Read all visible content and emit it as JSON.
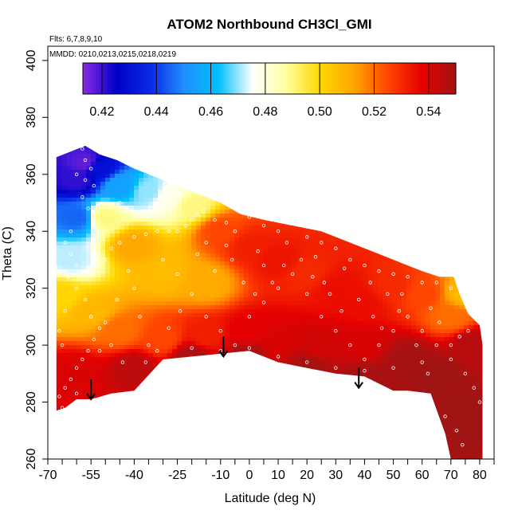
{
  "chart_data": {
    "type": "heatmap",
    "title": "ATOM2 Northbound CH3Cl_GMI",
    "annotations": [
      "Flts: 6,7,8,9,10",
      "MMDD: 0210,0213,0215,0218,0219"
    ],
    "xlabel": "Latitude (deg N)",
    "ylabel": "Theta (C)",
    "xlim": [
      -70,
      85
    ],
    "ylim": [
      260,
      405
    ],
    "x_ticks": [
      -70,
      -55,
      -40,
      -25,
      -10,
      0,
      10,
      20,
      30,
      40,
      50,
      60,
      70,
      80
    ],
    "x_tick_labels": [
      "-70",
      "-55",
      "-40",
      "-25",
      "-10",
      "0",
      "10",
      "20",
      "30",
      "40",
      "50",
      "60",
      "70",
      "80"
    ],
    "x_minor_ticks": [
      -65,
      -60,
      -50,
      -45,
      -35,
      -30,
      -20,
      -15,
      -5,
      5,
      15,
      25,
      35,
      45,
      55,
      65,
      75,
      85
    ],
    "y_ticks": [
      260,
      280,
      300,
      320,
      340,
      360,
      380,
      400
    ],
    "y_tick_labels": [
      "260",
      "280",
      "300",
      "320",
      "340",
      "360",
      "380",
      "400"
    ],
    "colorbar": {
      "range": [
        0.413,
        0.55
      ],
      "ticks": [
        0.42,
        0.44,
        0.46,
        0.48,
        0.5,
        0.52,
        0.54
      ],
      "tick_labels": [
        "0.42",
        "0.44",
        "0.46",
        "0.48",
        "0.50",
        "0.52",
        "0.54"
      ],
      "colors": [
        "#8a2be2",
        "#0000c8",
        "#0a2ae6",
        "#1e90ff",
        "#00bfff",
        "#ffffff",
        "#ffffa0",
        "#ffd700",
        "#ffa500",
        "#ff4500",
        "#e60000",
        "#a01414"
      ]
    },
    "domain_top": [
      [
        -67,
        366
      ],
      [
        -57,
        370
      ],
      [
        -52,
        367
      ],
      [
        -46,
        365
      ],
      [
        -40,
        362
      ],
      [
        -30,
        358
      ],
      [
        -25,
        356
      ],
      [
        -20,
        354
      ],
      [
        -10,
        350
      ],
      [
        -3,
        346
      ],
      [
        5,
        344
      ],
      [
        15,
        342
      ],
      [
        25,
        340
      ],
      [
        30,
        338
      ],
      [
        40,
        334
      ],
      [
        45,
        332
      ],
      [
        50,
        330
      ],
      [
        55,
        328
      ],
      [
        60,
        326
      ],
      [
        66,
        324
      ],
      [
        71,
        324
      ],
      [
        73,
        318
      ],
      [
        76,
        311
      ],
      [
        80,
        307
      ],
      [
        81,
        300
      ],
      [
        81,
        260
      ]
    ],
    "domain_bottom": [
      [
        80,
        260
      ],
      [
        70,
        260
      ],
      [
        68,
        269
      ],
      [
        63,
        283
      ],
      [
        55,
        284
      ],
      [
        50,
        284
      ],
      [
        40,
        289
      ],
      [
        30,
        290
      ],
      [
        20,
        292
      ],
      [
        10,
        294
      ],
      [
        0,
        298
      ],
      [
        -10,
        297
      ],
      [
        -20,
        296
      ],
      [
        -30,
        295
      ],
      [
        -40,
        284
      ],
      [
        -48,
        283
      ],
      [
        -55,
        281
      ],
      [
        -60,
        281
      ],
      [
        -64,
        278
      ],
      [
        -67,
        277
      ]
    ],
    "field_points": [
      {
        "lat": -60,
        "theta": 358,
        "value": 0.421
      },
      {
        "lat": -57,
        "theta": 364,
        "value": 0.417
      },
      {
        "lat": -52,
        "theta": 362,
        "value": 0.43
      },
      {
        "lat": -60,
        "theta": 345,
        "value": 0.445
      },
      {
        "lat": -62,
        "theta": 330,
        "value": 0.472
      },
      {
        "lat": -45,
        "theta": 356,
        "value": 0.455
      },
      {
        "lat": -35,
        "theta": 354,
        "value": 0.47
      },
      {
        "lat": -28,
        "theta": 352,
        "value": 0.478
      },
      {
        "lat": -20,
        "theta": 349,
        "value": 0.49
      },
      {
        "lat": -50,
        "theta": 345,
        "value": 0.49
      },
      {
        "lat": -40,
        "theta": 335,
        "value": 0.512
      },
      {
        "lat": -30,
        "theta": 325,
        "value": 0.507
      },
      {
        "lat": -15,
        "theta": 322,
        "value": 0.511
      },
      {
        "lat": -10,
        "theta": 340,
        "value": 0.525
      },
      {
        "lat": 0,
        "theta": 335,
        "value": 0.532
      },
      {
        "lat": 10,
        "theta": 330,
        "value": 0.534
      },
      {
        "lat": 20,
        "theta": 325,
        "value": 0.53
      },
      {
        "lat": 30,
        "theta": 320,
        "value": 0.535
      },
      {
        "lat": 40,
        "theta": 315,
        "value": 0.535
      },
      {
        "lat": 50,
        "theta": 320,
        "value": 0.53
      },
      {
        "lat": 60,
        "theta": 318,
        "value": 0.525
      },
      {
        "lat": 70,
        "theta": 310,
        "value": 0.52
      },
      {
        "lat": 75,
        "theta": 318,
        "value": 0.508
      },
      {
        "lat": -65,
        "theta": 318,
        "value": 0.5
      },
      {
        "lat": -55,
        "theta": 312,
        "value": 0.508
      },
      {
        "lat": -45,
        "theta": 305,
        "value": 0.52
      },
      {
        "lat": -30,
        "theta": 302,
        "value": 0.525
      },
      {
        "lat": -15,
        "theta": 303,
        "value": 0.532
      },
      {
        "lat": 0,
        "theta": 304,
        "value": 0.538
      },
      {
        "lat": 10,
        "theta": 300,
        "value": 0.54
      },
      {
        "lat": 25,
        "theta": 300,
        "value": 0.541
      },
      {
        "lat": 40,
        "theta": 300,
        "value": 0.54
      },
      {
        "lat": -60,
        "theta": 290,
        "value": 0.54
      },
      {
        "lat": -40,
        "theta": 292,
        "value": 0.545
      },
      {
        "lat": -20,
        "theta": 296,
        "value": 0.548
      },
      {
        "lat": 0,
        "theta": 297,
        "value": 0.548
      },
      {
        "lat": 20,
        "theta": 292,
        "value": 0.549
      },
      {
        "lat": 40,
        "theta": 288,
        "value": 0.549
      },
      {
        "lat": 55,
        "theta": 295,
        "value": 0.549
      },
      {
        "lat": 65,
        "theta": 290,
        "value": 0.55
      },
      {
        "lat": 75,
        "theta": 275,
        "value": 0.55
      },
      {
        "lat": 78,
        "theta": 300,
        "value": 0.546
      }
    ],
    "flight_track_points": [
      [
        -58,
        369
      ],
      [
        -57,
        365
      ],
      [
        -55,
        362
      ],
      [
        -57,
        358
      ],
      [
        -54,
        356
      ],
      [
        -60,
        360
      ],
      [
        -58,
        352
      ],
      [
        -56,
        348
      ],
      [
        -62,
        340
      ],
      [
        -64,
        336
      ],
      [
        -62,
        332
      ],
      [
        -60,
        328
      ],
      [
        -63,
        324
      ],
      [
        -60,
        320
      ],
      [
        -57,
        316
      ],
      [
        -55,
        310
      ],
      [
        -52,
        306
      ],
      [
        -54,
        302
      ],
      [
        -56,
        298
      ],
      [
        -58,
        295
      ],
      [
        -60,
        292
      ],
      [
        -62,
        288
      ],
      [
        -64,
        285
      ],
      [
        -66,
        282
      ],
      [
        -65,
        278
      ],
      [
        -60,
        283
      ],
      [
        -52,
        298
      ],
      [
        -50,
        330
      ],
      [
        -48,
        334
      ],
      [
        -45,
        336
      ],
      [
        -40,
        338
      ],
      [
        -36,
        339
      ],
      [
        -32,
        340
      ],
      [
        -28,
        340
      ],
      [
        -25,
        340
      ],
      [
        -22,
        342
      ],
      [
        -20,
        344
      ],
      [
        -18,
        346
      ],
      [
        -16,
        347
      ],
      [
        -12,
        344
      ],
      [
        -8,
        343
      ],
      [
        -5,
        340
      ],
      [
        0,
        345
      ],
      [
        5,
        342
      ],
      [
        10,
        340
      ],
      [
        15,
        344
      ],
      [
        20,
        338
      ],
      [
        25,
        336
      ],
      [
        30,
        334
      ],
      [
        35,
        330
      ],
      [
        40,
        328
      ],
      [
        45,
        326
      ],
      [
        50,
        325
      ],
      [
        55,
        324
      ],
      [
        60,
        322
      ],
      [
        65,
        322
      ],
      [
        70,
        320
      ],
      [
        -40,
        320
      ],
      [
        -38,
        310
      ],
      [
        -35,
        300
      ],
      [
        -30,
        330
      ],
      [
        -25,
        325
      ],
      [
        -20,
        318
      ],
      [
        -15,
        310
      ],
      [
        -10,
        305
      ],
      [
        -5,
        300
      ],
      [
        0,
        310
      ],
      [
        5,
        315
      ],
      [
        10,
        320
      ],
      [
        15,
        325
      ],
      [
        20,
        318
      ],
      [
        25,
        310
      ],
      [
        30,
        305
      ],
      [
        35,
        300
      ],
      [
        40,
        295
      ],
      [
        45,
        300
      ],
      [
        50,
        305
      ],
      [
        55,
        310
      ],
      [
        60,
        305
      ],
      [
        65,
        300
      ],
      [
        70,
        295
      ],
      [
        75,
        290
      ],
      [
        78,
        285
      ],
      [
        80,
        280
      ],
      [
        72,
        270
      ],
      [
        74,
        265
      ],
      [
        68,
        275
      ],
      [
        62,
        290
      ],
      [
        58,
        300
      ],
      [
        52,
        312
      ],
      [
        48,
        318
      ],
      [
        42,
        322
      ],
      [
        38,
        316
      ],
      [
        32,
        312
      ],
      [
        28,
        318
      ],
      [
        22,
        324
      ],
      [
        18,
        330
      ],
      [
        12,
        328
      ],
      [
        8,
        322
      ],
      [
        2,
        318
      ],
      [
        -2,
        322
      ],
      [
        -6,
        330
      ],
      [
        -12,
        326
      ],
      [
        -18,
        332
      ],
      [
        -24,
        312
      ],
      [
        -28,
        306
      ],
      [
        -32,
        298
      ],
      [
        -36,
        294
      ],
      [
        -44,
        294
      ],
      [
        -48,
        300
      ],
      [
        -50,
        308
      ],
      [
        -46,
        316
      ],
      [
        -42,
        326
      ],
      [
        -10,
        298
      ],
      [
        -20,
        299
      ],
      [
        0,
        299
      ],
      [
        10,
        296
      ],
      [
        20,
        294
      ],
      [
        30,
        292
      ],
      [
        40,
        291
      ],
      [
        50,
        292
      ],
      [
        60,
        294
      ],
      [
        70,
        300
      ],
      [
        76,
        305
      ],
      [
        -8,
        335
      ],
      [
        3,
        333
      ],
      [
        13,
        336
      ],
      [
        23,
        331
      ],
      [
        33,
        327
      ],
      [
        43,
        310
      ],
      [
        53,
        318
      ],
      [
        63,
        313
      ],
      [
        73,
        303
      ],
      [
        -65,
        300
      ],
      [
        -66,
        305
      ],
      [
        -64,
        312
      ],
      [
        -55,
        325
      ],
      [
        -52,
        340
      ],
      [
        -45,
        350
      ],
      [
        -35,
        345
      ],
      [
        -15,
        336
      ],
      [
        5,
        328
      ],
      [
        26,
        322
      ],
      [
        46,
        306
      ],
      [
        66,
        308
      ]
    ],
    "arrows": [
      {
        "lat": -55,
        "theta_start": 288,
        "theta_end": 281
      },
      {
        "lat": -9,
        "theta_start": 303,
        "theta_end": 296
      },
      {
        "lat": 38,
        "theta_start": 292,
        "theta_end": 285
      }
    ]
  }
}
